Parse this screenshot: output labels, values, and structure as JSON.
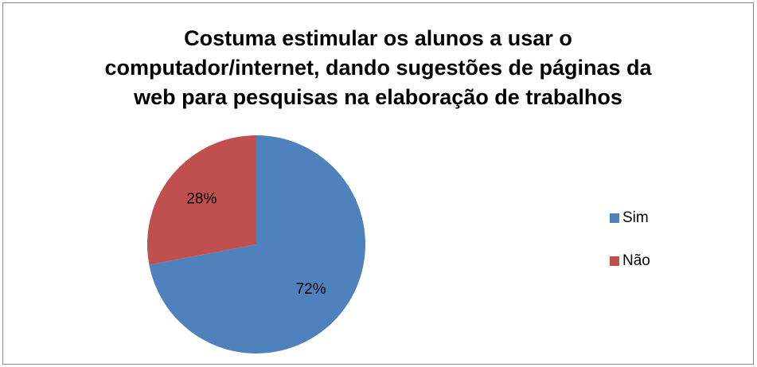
{
  "chart_data": {
    "type": "pie",
    "title": "Costuma estimular os alunos a usar o computador/internet, dando sugestões de páginas da web para pesquisas na elaboração de trabalhos",
    "categories": [
      "Sim",
      "Não"
    ],
    "values": [
      72,
      28
    ],
    "value_labels": [
      "72%",
      "28%"
    ],
    "colors": [
      "#4f81bd",
      "#c0504d"
    ],
    "legend": "right"
  }
}
